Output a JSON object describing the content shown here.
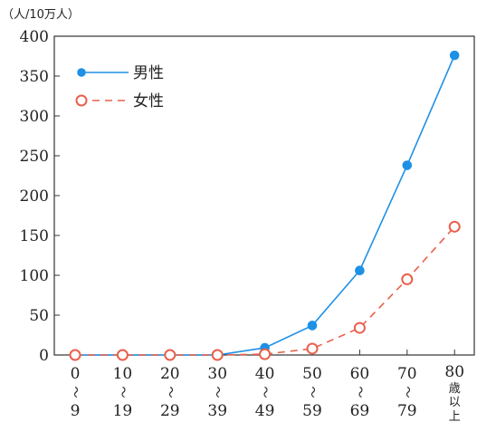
{
  "chart_data": {
    "type": "line",
    "unit_label": "（人/10万人）",
    "categories": [
      [
        "0",
        "9"
      ],
      [
        "10",
        "19"
      ],
      [
        "20",
        "29"
      ],
      [
        "30",
        "39"
      ],
      [
        "40",
        "49"
      ],
      [
        "50",
        "59"
      ],
      [
        "60",
        "69"
      ],
      [
        "70",
        "79"
      ],
      [
        "80",
        "歳",
        "以",
        "上"
      ]
    ],
    "range_mark": "〜",
    "ylim": [
      0,
      400
    ],
    "yticks": [
      "0",
      "50",
      "100",
      "150",
      "200",
      "250",
      "300",
      "350",
      "400"
    ],
    "grid": false,
    "legend_position": "top-left",
    "series": [
      {
        "name": "男性",
        "color": "#1e90e6",
        "style": "solid",
        "marker": "filled-circle",
        "values": [
          0,
          0,
          0,
          0,
          9,
          37,
          106,
          238,
          376
        ]
      },
      {
        "name": "女性",
        "color": "#e8604c",
        "style": "dashed",
        "marker": "open-circle",
        "values": [
          0,
          0,
          0,
          0,
          1,
          8,
          34,
          95,
          161
        ]
      }
    ]
  }
}
